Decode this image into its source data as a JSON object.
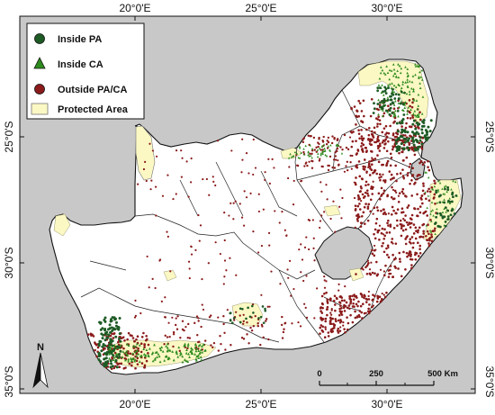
{
  "map": {
    "colors": {
      "background": "#c8c8c8",
      "land": "#ffffff",
      "protected_area": "#fbf8c4",
      "inside_pa": "#1e5b25",
      "inside_ca": "#2e8b1e",
      "outside_pa_ca": "#8b1a1a",
      "border": "#111111"
    },
    "top_ticks": [
      "20°0'E",
      "25°0'E",
      "30°0'E"
    ],
    "bottom_ticks": [
      "20°0'E",
      "25°0'E",
      "30°0'E"
    ],
    "left_ticks": [
      "25°0'S",
      "30°0'S",
      "35°0'S"
    ],
    "right_ticks": [
      "25°0'S",
      "30°0'S",
      "35°0'S"
    ]
  },
  "legend": {
    "items": [
      {
        "label": "Inside PA",
        "symbol": "circle",
        "color": "#1e5b25"
      },
      {
        "label": "Inside CA",
        "symbol": "triangle",
        "color": "#2e8b1e"
      },
      {
        "label": "Outside PA/CA",
        "symbol": "circle",
        "color": "#8b1a1a"
      },
      {
        "label": "Protected Area",
        "symbol": "rect",
        "color": "#fbf8c4"
      }
    ]
  },
  "north_arrow": {
    "label": "N"
  },
  "scale_bar": {
    "labels": [
      "0",
      "250",
      "500 Km"
    ]
  }
}
